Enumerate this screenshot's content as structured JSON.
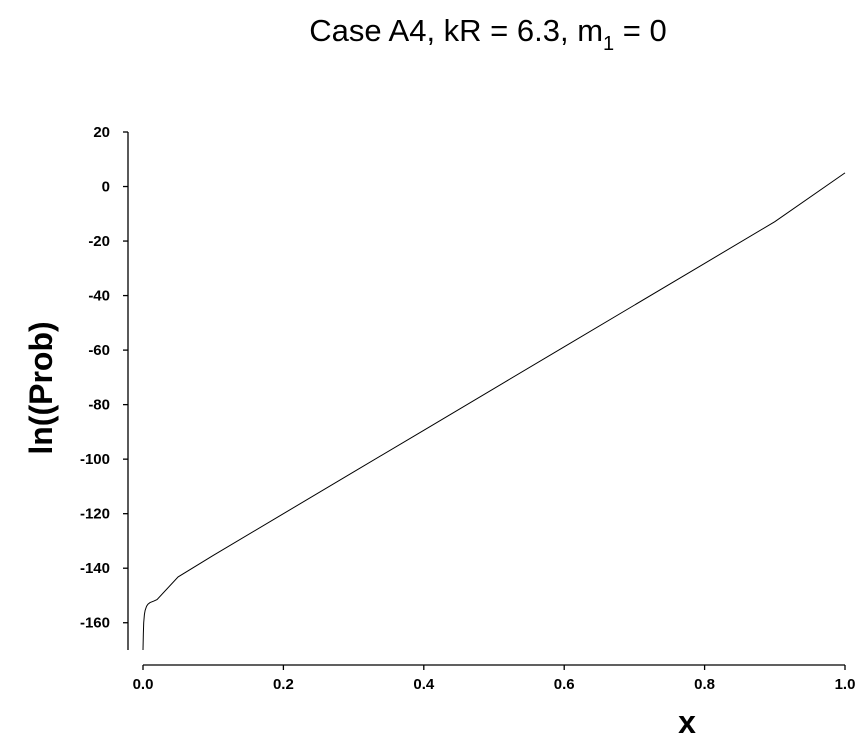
{
  "chart_data": {
    "type": "line",
    "title": {
      "main": "Case A4, kR = 6.3, m",
      "subscript": "1",
      "suffix": " = 0"
    },
    "xlabel": "x",
    "ylabel": "ln((Prob)",
    "xlim": [
      0.0,
      1.0
    ],
    "ylim": [
      -170,
      20
    ],
    "x_ticks": [
      "0.0",
      "0.2",
      "0.4",
      "0.6",
      "0.8",
      "1.0"
    ],
    "y_ticks": [
      "20",
      "0",
      "-20",
      "-40",
      "-60",
      "-80",
      "-100",
      "-120",
      "-140",
      "-160"
    ],
    "grid": false,
    "series": [
      {
        "color": "#000000",
        "x": [
          0.0,
          0.0005,
          0.001,
          0.002,
          0.003,
          0.005,
          0.007,
          0.01,
          0.015,
          0.02,
          0.05,
          0.1,
          0.2,
          0.3,
          0.4,
          0.5,
          0.6,
          0.7,
          0.8,
          0.9,
          1.0
        ],
        "y": [
          -170,
          -164,
          -160,
          -157,
          -155.5,
          -154,
          -153.2,
          -152.6,
          -152.1,
          -151.5,
          -143.2,
          -135.3,
          -120.0,
          -104.7,
          -89.4,
          -74.1,
          -58.8,
          -43.5,
          -28.2,
          -12.9,
          5.0
        ]
      }
    ]
  }
}
